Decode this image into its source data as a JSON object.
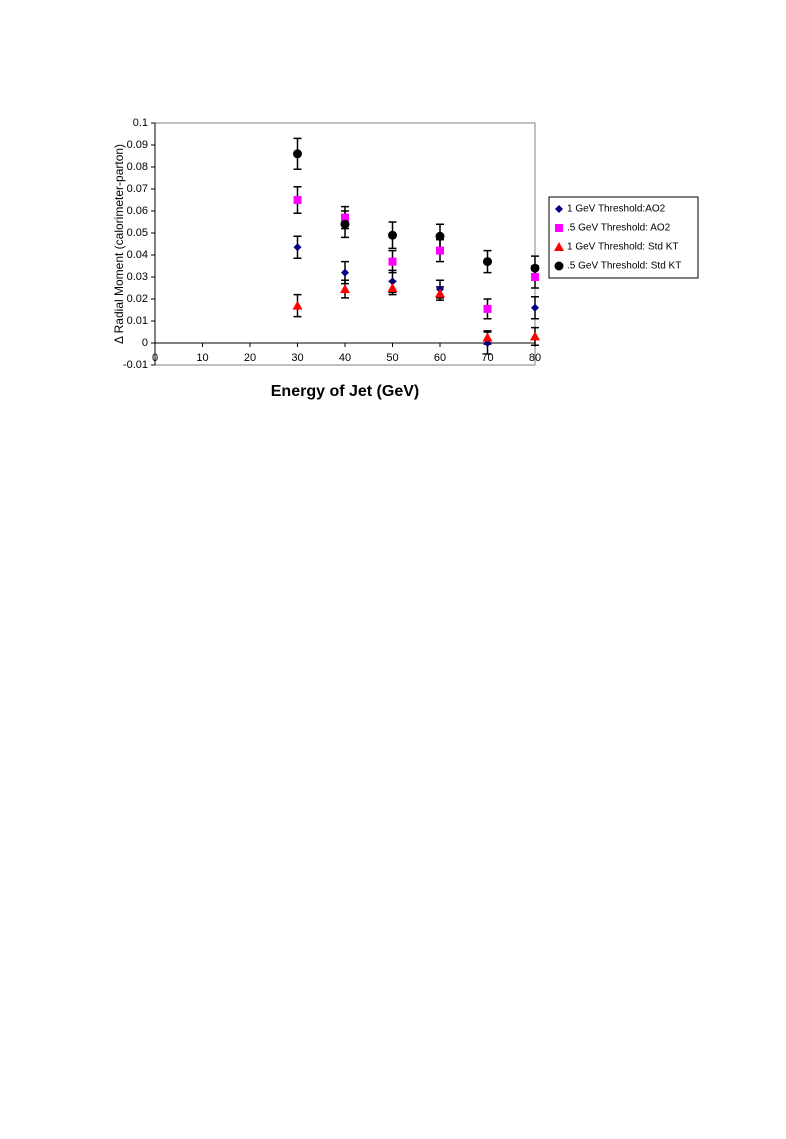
{
  "chart_data": {
    "type": "scatter",
    "xlabel": "Energy of Jet (GeV)",
    "ylabel": "Δ Radial Moment (calorimeter-parton)",
    "x": [
      30,
      40,
      50,
      60,
      70,
      80
    ],
    "series": [
      {
        "name": "1 GeV Threshold:AO2",
        "color": "#000080",
        "marker": "diamond",
        "values": [
          0.0435,
          0.032,
          0.028,
          0.0245,
          0.0,
          0.016
        ],
        "errors": [
          0.005,
          0.005,
          0.005,
          0.004,
          0.005,
          0.005
        ]
      },
      {
        "name": ".5 GeV Threshold: AO2",
        "color": "#ff00ff",
        "marker": "square",
        "values": [
          0.065,
          0.057,
          0.037,
          0.042,
          0.0155,
          0.03
        ],
        "errors": [
          0.006,
          0.005,
          0.005,
          0.005,
          0.0045,
          0.005
        ]
      },
      {
        "name": "1 GeV Threshold: Std KT",
        "color": "#ff0000",
        "marker": "triangle",
        "values": [
          0.017,
          0.0245,
          0.025,
          0.0225,
          0.0025,
          0.003
        ],
        "errors": [
          0.005,
          0.004,
          0.003,
          0.003,
          0.003,
          0.004
        ]
      },
      {
        "name": ".5 GeV Threshold: Std KT",
        "color": "#000000",
        "marker": "circle",
        "values": [
          0.086,
          0.054,
          0.049,
          0.0485,
          0.037,
          0.034
        ],
        "errors": [
          0.007,
          0.006,
          0.006,
          0.0055,
          0.005,
          0.0055
        ]
      }
    ],
    "xlim": [
      0,
      80
    ],
    "xticks": [
      0,
      10,
      20,
      30,
      40,
      50,
      60,
      70,
      80
    ],
    "ylim": [
      -0.01,
      0.1
    ],
    "yticks": [
      0.1,
      0.09,
      0.08,
      0.07,
      0.06,
      0.05,
      0.04,
      0.03,
      0.02,
      0.01,
      0,
      -0.01
    ],
    "grid": false,
    "legend": "right"
  }
}
